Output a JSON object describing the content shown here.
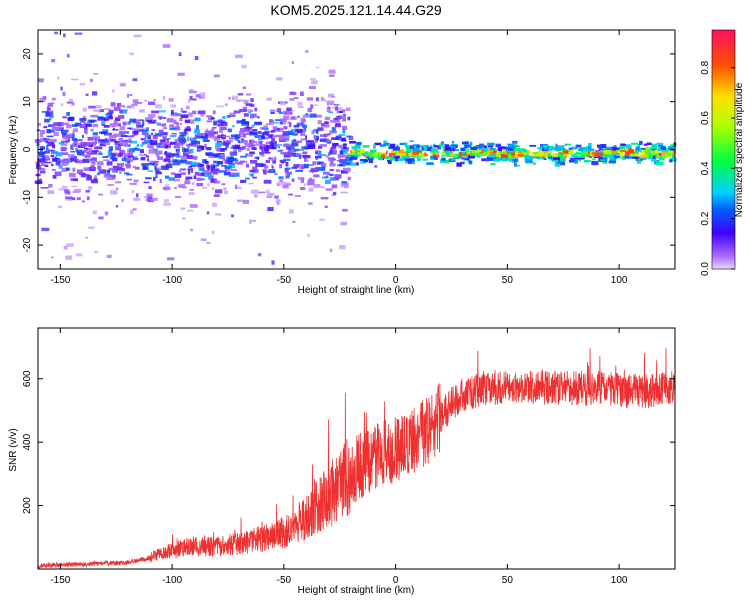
{
  "title": "KOM5.2025.121.14.44.G29",
  "chart_data": [
    {
      "type": "heatmap",
      "xlabel": "Height of straight line (km)",
      "ylabel": "Frequency (Hz)",
      "xlim": [
        -160,
        125
      ],
      "ylim": [
        -25,
        25
      ],
      "xticks": [
        -150,
        -100,
        -50,
        0,
        50,
        100
      ],
      "yticks": [
        -20,
        -10,
        0,
        10,
        20
      ],
      "colorbar": {
        "label": "Normalized spectral amplitude",
        "range": [
          0,
          0.95
        ],
        "ticks": [
          "0.0",
          "0.2",
          "0.4",
          "0.6",
          "0.8"
        ],
        "ticks_values": [
          0,
          0.2,
          0.4,
          0.6,
          0.8
        ]
      },
      "regions": [
        {
          "x": [
            -160,
            -20
          ],
          "freq_center": 0.5,
          "freq_spread": 5,
          "amplitude": [
            0.05,
            0.3
          ]
        },
        {
          "x": [
            -20,
            125
          ],
          "freq_center": -0.8,
          "freq_spread": 1,
          "amplitude": [
            0.3,
            0.9
          ]
        }
      ]
    },
    {
      "type": "line",
      "xlabel": "Height of straight line (km)",
      "ylabel": "SNR (v/v)",
      "xlim": [
        -160,
        125
      ],
      "ylim": [
        0,
        760
      ],
      "xticks": [
        -150,
        -100,
        -50,
        0,
        50,
        100
      ],
      "yticks": [
        200,
        400,
        600
      ],
      "line_color": "#ee3030",
      "series": [
        {
          "x": [
            -160,
            -140,
            -120,
            -110,
            -100,
            -90,
            -80,
            -70,
            -60,
            -50,
            -40,
            -30,
            -20,
            -15,
            -10,
            -5,
            0,
            5,
            10,
            15,
            20,
            25,
            30,
            40,
            50,
            60,
            70,
            80,
            90,
            100,
            110,
            125
          ],
          "values": [
            10,
            15,
            20,
            35,
            60,
            70,
            70,
            80,
            95,
            115,
            160,
            230,
            300,
            330,
            350,
            360,
            370,
            390,
            410,
            440,
            480,
            520,
            550,
            570,
            575,
            575,
            570,
            570,
            570,
            565,
            560,
            570
          ]
        }
      ]
    }
  ]
}
